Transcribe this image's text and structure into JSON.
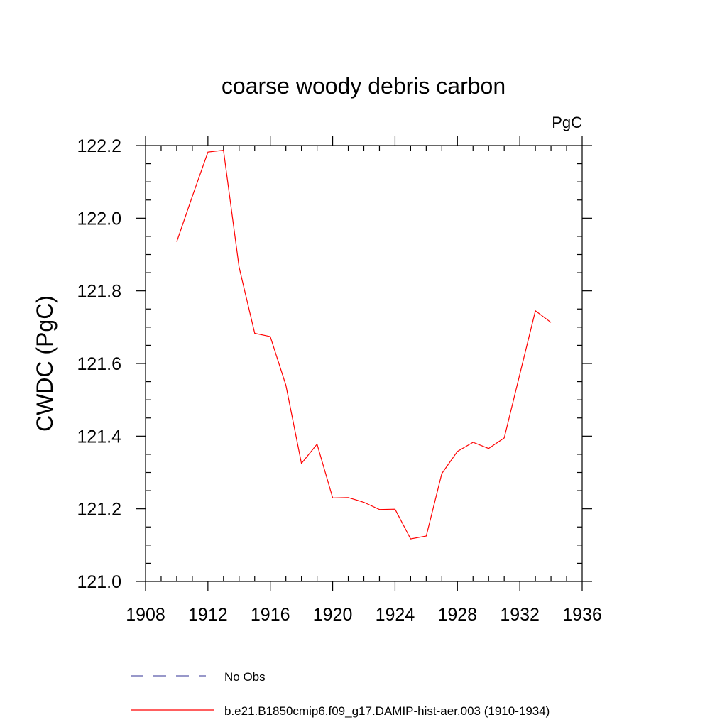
{
  "chart_data": {
    "type": "line",
    "title": "coarse woody debris carbon",
    "units_label": "PgC",
    "xlabel": "",
    "ylabel": "CWDC  (PgC)",
    "xlim": [
      1908,
      1936
    ],
    "ylim": [
      121.0,
      122.2
    ],
    "x_ticks": [
      1908,
      1912,
      1916,
      1920,
      1924,
      1928,
      1932,
      1936
    ],
    "x_tick_labels": [
      "1908",
      "1912",
      "1916",
      "1920",
      "1924",
      "1928",
      "1932",
      "1936"
    ],
    "y_ticks": [
      121.0,
      121.2,
      121.4,
      121.6,
      121.8,
      122.0,
      122.2
    ],
    "y_tick_labels": [
      "121.0",
      "121.2",
      "121.4",
      "121.6",
      "121.8",
      "122.0",
      "122.2"
    ],
    "grid": false,
    "legend_position": "bottom",
    "series": [
      {
        "name": "b.e21.B1850cmip6.f09_g17.DAMIP-hist-aer.003 (1910-1934)",
        "color": "#ff0000",
        "style": "solid",
        "x": [
          1910,
          1911,
          1912,
          1913,
          1914,
          1915,
          1916,
          1917,
          1918,
          1919,
          1920,
          1921,
          1922,
          1923,
          1924,
          1925,
          1926,
          1927,
          1928,
          1929,
          1930,
          1931,
          1932,
          1933,
          1934
        ],
        "y": [
          121.935,
          122.06,
          122.182,
          122.187,
          121.865,
          121.683,
          121.674,
          121.54,
          121.325,
          121.378,
          121.23,
          121.231,
          121.218,
          121.198,
          121.199,
          121.117,
          121.125,
          121.297,
          121.358,
          121.383,
          121.366,
          121.395,
          121.57,
          121.745,
          121.713
        ]
      }
    ],
    "legend": [
      {
        "label": "No Obs",
        "color": "#5a5aaa",
        "style": "dashed"
      },
      {
        "label": "b.e21.B1850cmip6.f09_g17.DAMIP-hist-aer.003 (1910-1934)",
        "color": "#ff0000",
        "style": "solid"
      }
    ]
  }
}
